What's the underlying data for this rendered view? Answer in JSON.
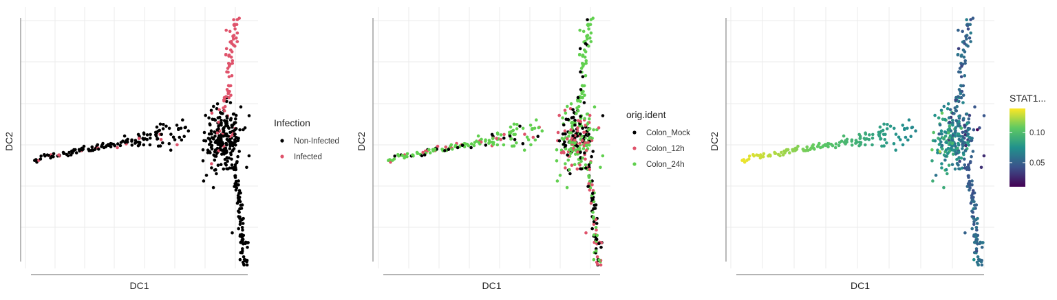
{
  "chart_data": [
    {
      "type": "scatter",
      "xlabel": "DC1",
      "ylabel": "DC2",
      "xlim": [
        0,
        1
      ],
      "ylim": [
        0,
        1
      ],
      "grid": true,
      "ticks_shown": false,
      "legend_position": "right",
      "legend_title": "Infection",
      "color_by": "Infection",
      "series": [
        {
          "name": "Non-Infected",
          "color": "#000000"
        },
        {
          "name": "Infected",
          "color": "#df536b"
        }
      ]
    },
    {
      "type": "scatter",
      "xlabel": "DC1",
      "ylabel": "DC2",
      "xlim": [
        0,
        1
      ],
      "ylim": [
        0,
        1
      ],
      "grid": true,
      "ticks_shown": false,
      "legend_position": "right",
      "legend_title": "orig.ident",
      "color_by": "orig.ident",
      "series": [
        {
          "name": "Colon_Mock",
          "color": "#000000"
        },
        {
          "name": "Colon_12h",
          "color": "#df536b"
        },
        {
          "name": "Colon_24h",
          "color": "#61d04f"
        }
      ]
    },
    {
      "type": "scatter",
      "xlabel": "DC1",
      "ylabel": "DC2",
      "xlim": [
        0,
        1
      ],
      "ylim": [
        0,
        1
      ],
      "grid": true,
      "ticks_shown": false,
      "legend_position": "right",
      "legend_title": "STAT1...",
      "color_by": "continuous",
      "colorscale": "viridis",
      "colorbar_range": [
        0.01,
        0.14
      ],
      "colorbar_ticks": [
        0.05,
        0.1
      ],
      "colorbar_tick_labels": [
        "0.05",
        "0.10"
      ]
    }
  ]
}
